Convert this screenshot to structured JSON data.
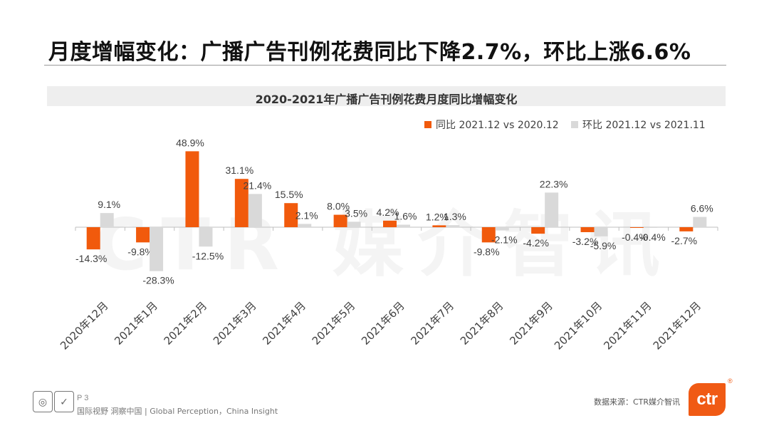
{
  "slide": {
    "title": "月度增幅变化：广播广告刊例花费同比下降2.7%，环比上涨6.6%",
    "page": "P 3",
    "slogan": "国际视野  洞察中国 | Global Perception，China Insight",
    "source": "数据来源：CTR媒介智讯",
    "logo_text": "ctr",
    "watermark": "CTR 媒介智讯"
  },
  "colors": {
    "yoy": "#f15a0c",
    "mom": "#d9d9d9",
    "axis": "#bfbfbf",
    "title_band": "#eeeeee"
  },
  "chart_data": {
    "type": "bar",
    "title": "2020-2021年广播广告刊例花费月度同比增幅变化",
    "categories": [
      "2020年12月",
      "2021年1月",
      "2021年2月",
      "2021年3月",
      "2021年4月",
      "2021年5月",
      "2021年6月",
      "2021年7月",
      "2021年8月",
      "2021年9月",
      "2021年10月",
      "2021年11月",
      "2021年12月"
    ],
    "series": [
      {
        "name": "同比 2021.12 vs 2020.12",
        "values": [
          -14.3,
          -9.8,
          48.9,
          31.1,
          15.5,
          8.0,
          4.2,
          1.2,
          -9.8,
          -4.2,
          -3.2,
          -0.4,
          -2.7
        ],
        "labels": [
          "-14.3%",
          "-9.8%",
          "48.9%",
          "31.1%",
          "15.5%",
          "8.0%",
          "4.2%",
          "1.2%",
          "-9.8%",
          "-4.2%",
          "-3.2%",
          "-0.4%",
          "-2.7%"
        ]
      },
      {
        "name": "环比 2021.12 vs 2021.11",
        "values": [
          9.1,
          -28.3,
          -12.5,
          21.4,
          2.1,
          3.5,
          1.6,
          1.3,
          -2.1,
          22.3,
          -5.9,
          -0.4,
          6.6
        ],
        "labels": [
          "9.1%",
          "-28.3%",
          "-12.5%",
          "21.4%",
          "2.1%",
          "3.5%",
          "1.6%",
          "1.3%",
          "-2.1%",
          "22.3%",
          "-5.9%",
          "-0.4%",
          "6.6%"
        ]
      }
    ],
    "legend_position": "top-right",
    "grid": false
  }
}
